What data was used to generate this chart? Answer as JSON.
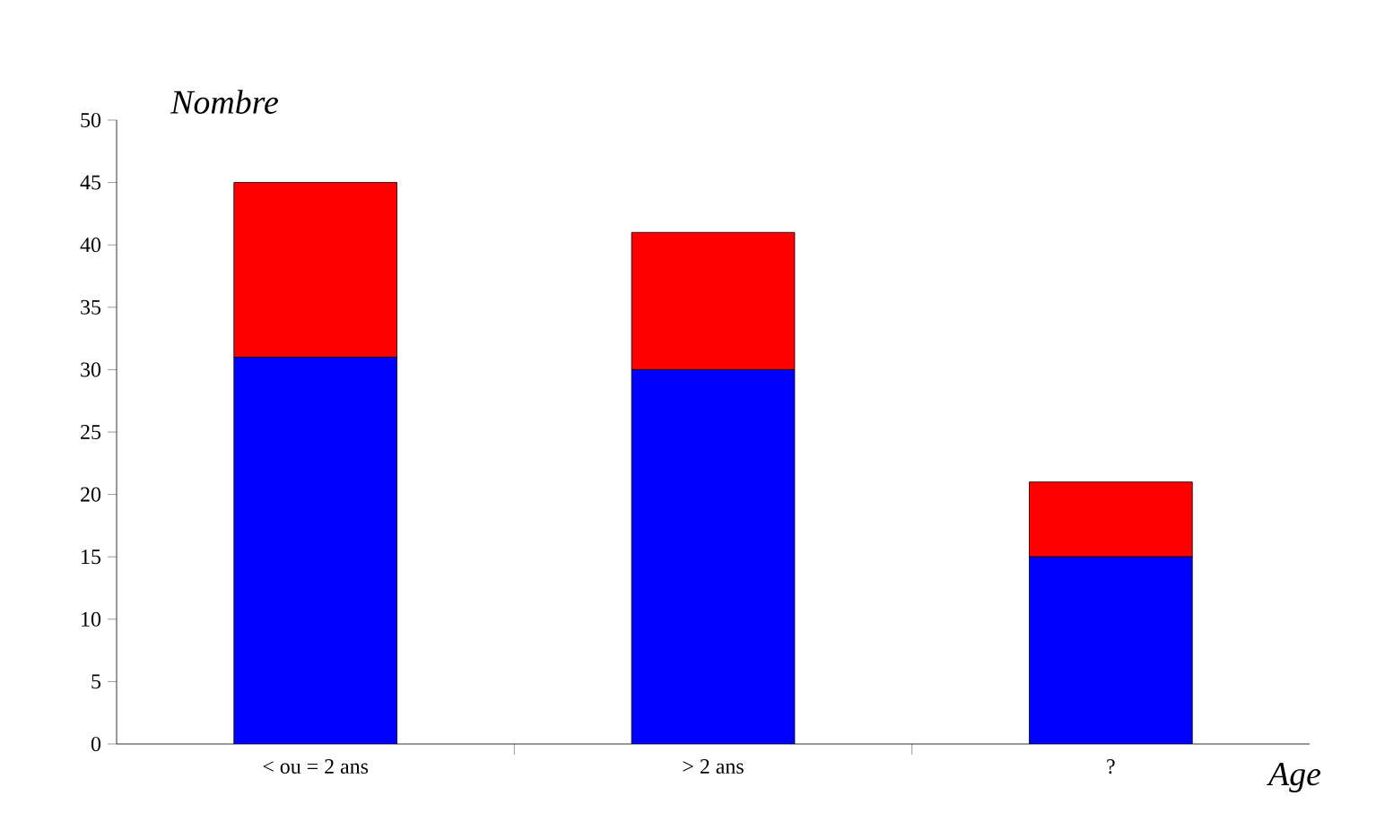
{
  "chart_data": {
    "type": "bar",
    "stacked": true,
    "xlabel": "Age",
    "ylabel": "Nombre",
    "categories": [
      "< ou = 2 ans",
      "> 2 ans",
      "?"
    ],
    "series": [
      {
        "color": "#0000ff",
        "values": [
          31,
          30,
          15
        ]
      },
      {
        "color": "#ff0000",
        "values": [
          14,
          11,
          6
        ]
      }
    ],
    "ylim": [
      0,
      50
    ],
    "yticks": [
      0,
      5,
      10,
      15,
      20,
      25,
      30,
      35,
      40,
      45,
      50
    ],
    "grid": false
  }
}
